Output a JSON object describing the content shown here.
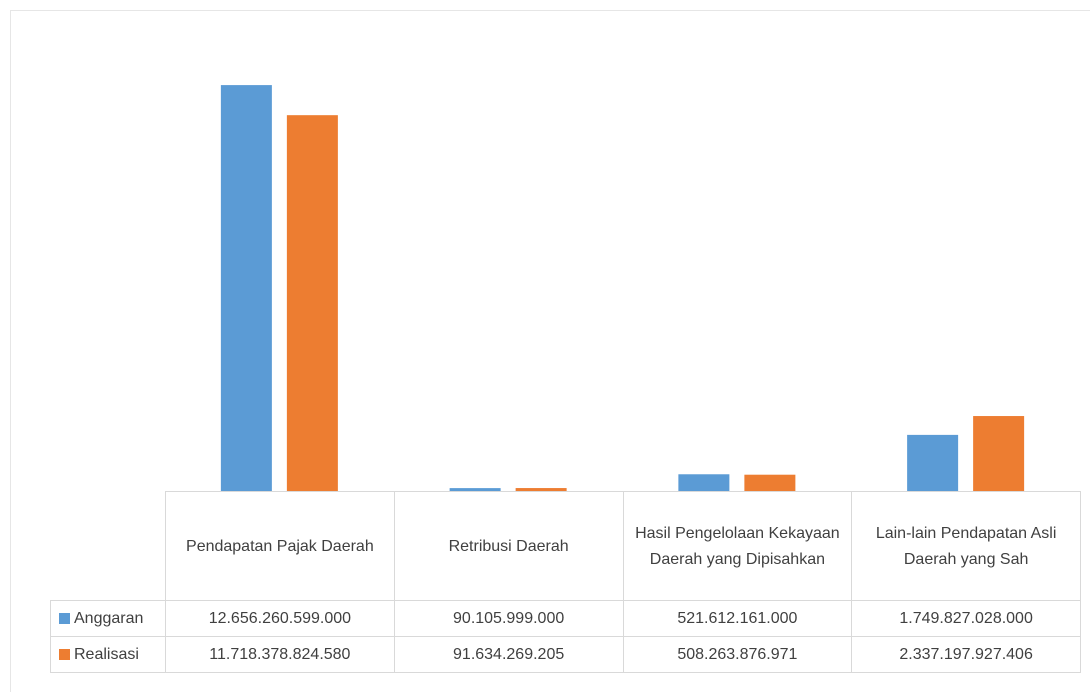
{
  "chart_data": {
    "type": "bar",
    "categories": [
      "Pendapatan Pajak Daerah",
      "Retribusi Daerah",
      "Hasil Pengelolaan Kekayaan Daerah yang Dipisahkan",
      "Lain-lain Pendapatan Asli Daerah yang Sah"
    ],
    "series": [
      {
        "name": "Anggaran",
        "color": "#5b9bd5",
        "values": [
          12656260599000,
          90105999000,
          521612161000,
          1749827028000
        ],
        "value_labels": [
          "12.656.260.599.000",
          "90.105.999.000",
          "521.612.161.000",
          "1.749.827.028.000"
        ]
      },
      {
        "name": "Realisasi",
        "color": "#ed7d31",
        "values": [
          11718378824580,
          91634269205,
          508263876971,
          2337197927406
        ],
        "value_labels": [
          "11.718.378.824.580",
          "91.634.269.205",
          "508.263.876.971",
          "2.337.197.927.406"
        ]
      }
    ],
    "ylim": [
      0,
      14000000000000
    ]
  }
}
